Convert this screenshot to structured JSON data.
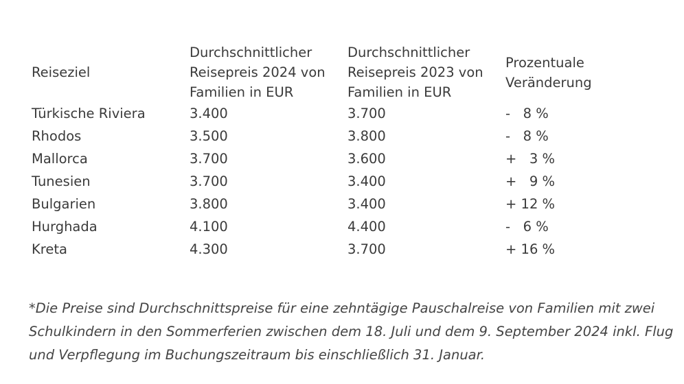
{
  "table": {
    "headers": {
      "destination": "Reiseziel",
      "price_2024": [
        "Durchschnittlicher",
        "Reisepreis 2024 von",
        "Familien in EUR"
      ],
      "price_2023": [
        "Durchschnittlicher",
        "Reisepreis 2023 von",
        "Familien in EUR"
      ],
      "change": [
        "Prozentuale",
        "Veränderung"
      ]
    },
    "rows": [
      {
        "destination": "Türkische Riviera",
        "price_2024": "3.400",
        "price_2023": "3.700",
        "change": "-   8 %"
      },
      {
        "destination": "Rhodos",
        "price_2024": "3.500",
        "price_2023": "3.800",
        "change": "-   8 %"
      },
      {
        "destination": "Mallorca",
        "price_2024": "3.700",
        "price_2023": "3.600",
        "change": "+   3 %"
      },
      {
        "destination": "Tunesien",
        "price_2024": "3.700",
        "price_2023": "3.400",
        "change": "+   9 %"
      },
      {
        "destination": "Bulgarien",
        "price_2024": "3.800",
        "price_2023": "3.400",
        "change": "+ 12 %"
      },
      {
        "destination": "Hurghada",
        "price_2024": "4.100",
        "price_2023": "4.400",
        "change": "-   6 %"
      },
      {
        "destination": "Kreta",
        "price_2024": "4.300",
        "price_2023": "3.700",
        "change": "+ 16 %"
      }
    ]
  },
  "footnote": "*Die Preise sind Durchschnittspreise für eine zehntägige Pauschalreise von Familien mit zwei Schulkindern in den Sommerferien zwischen dem 18. Juli und dem 9. September 2024 inkl. Flug und Verpflegung im Buchungszeitraum bis einschließlich 31. Januar."
}
